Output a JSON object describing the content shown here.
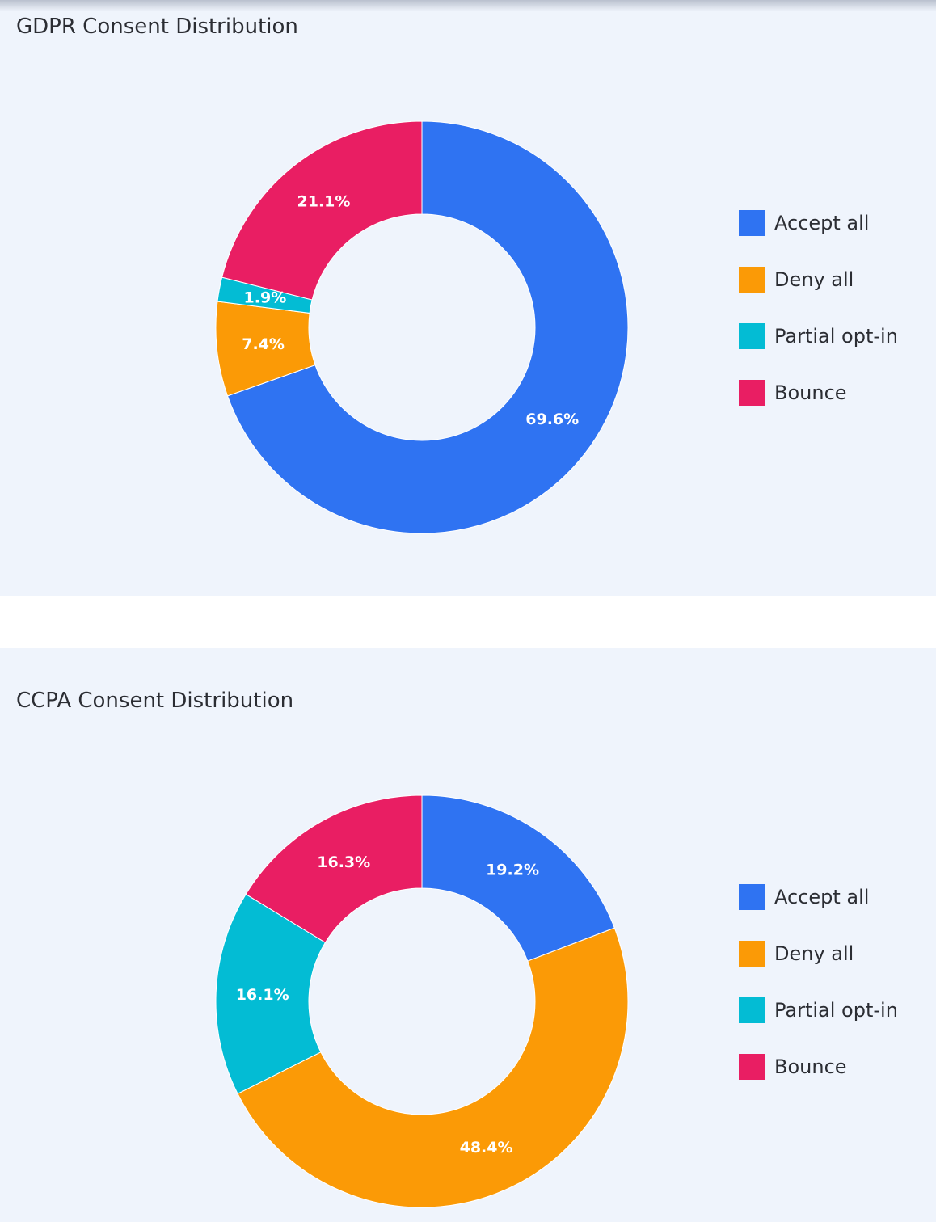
{
  "colors": {
    "accept_all": "#2f73f2",
    "deny_all": "#fb9a06",
    "partial_opt_in": "#03bcd4",
    "bounce": "#e91e63"
  },
  "chart_data": [
    {
      "type": "pie",
      "title": "GDPR Consent Distribution",
      "hole": true,
      "legend_placement": "right",
      "categories": [
        "Accept all",
        "Deny all",
        "Partial opt-in",
        "Bounce"
      ],
      "values": [
        69.6,
        7.4,
        1.9,
        21.1
      ],
      "data_labels": [
        "69.6%",
        "7.4%",
        "1.9%",
        "21.1%"
      ],
      "colors": [
        "#2f73f2",
        "#fb9a06",
        "#03bcd4",
        "#e91e63"
      ],
      "legend": [
        "Accept all",
        "Deny all",
        "Partial opt-in",
        "Bounce"
      ]
    },
    {
      "type": "pie",
      "title": "CCPA Consent Distribution",
      "hole": true,
      "legend_placement": "right",
      "categories": [
        "Accept all",
        "Deny all",
        "Partial opt-in",
        "Bounce"
      ],
      "values": [
        19.2,
        48.4,
        16.1,
        16.3
      ],
      "data_labels": [
        "19.2%",
        "48.4%",
        "16.1%",
        "16.3%"
      ],
      "colors": [
        "#2f73f2",
        "#fb9a06",
        "#03bcd4",
        "#e91e63"
      ],
      "legend": [
        "Accept all",
        "Deny all",
        "Partial opt-in",
        "Bounce"
      ]
    }
  ]
}
